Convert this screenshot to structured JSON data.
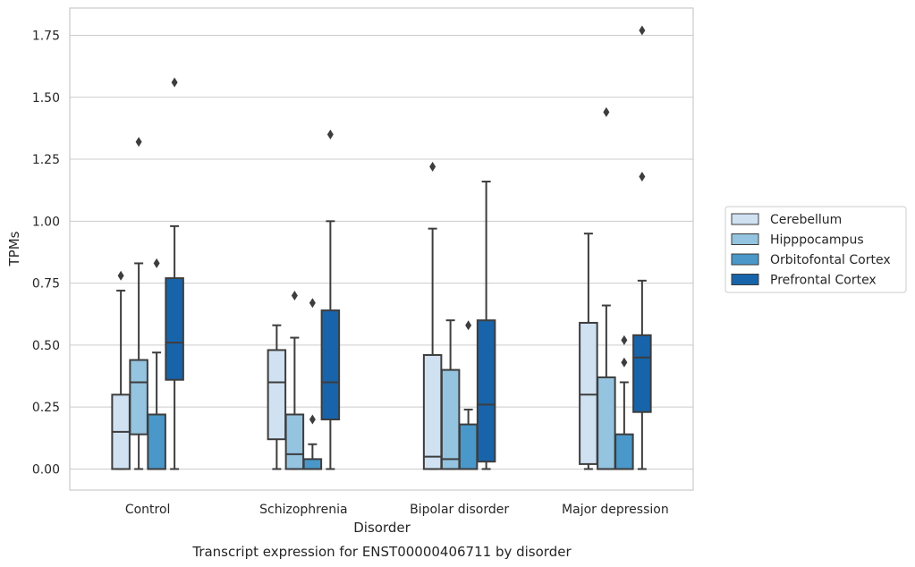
{
  "chart_data": {
    "type": "box",
    "title": "",
    "caption": "Transcript expression for ENST00000406711 by disorder",
    "xlabel": "Disorder",
    "ylabel": "TPMs",
    "ylim": [
      -0.085,
      1.86
    ],
    "yticks": [
      "0.00",
      "0.25",
      "0.50",
      "0.75",
      "1.00",
      "1.25",
      "1.50",
      "1.75"
    ],
    "grid": "horizontal",
    "legend_position": "right",
    "categories": [
      "Control",
      "Schizophrenia",
      "Bipolar disorder",
      "Major depression"
    ],
    "series": [
      {
        "name": "Cerebellum",
        "color": "#d0e1f2",
        "boxes": [
          {
            "whislo": 0.0,
            "q1": 0.0,
            "med": 0.15,
            "q3": 0.3,
            "whishi": 0.72,
            "fliers": [
              0.78
            ]
          },
          {
            "whislo": 0.0,
            "q1": 0.12,
            "med": 0.35,
            "q3": 0.48,
            "whishi": 0.58,
            "fliers": []
          },
          {
            "whislo": 0.0,
            "q1": 0.0,
            "med": 0.05,
            "q3": 0.46,
            "whishi": 0.97,
            "fliers": [
              1.22
            ]
          },
          {
            "whislo": 0.0,
            "q1": 0.02,
            "med": 0.3,
            "q3": 0.59,
            "whishi": 0.95,
            "fliers": []
          }
        ]
      },
      {
        "name": "Hipppocampus",
        "color": "#94c4df",
        "boxes": [
          {
            "whislo": 0.0,
            "q1": 0.14,
            "med": 0.35,
            "q3": 0.44,
            "whishi": 0.83,
            "fliers": [
              1.32
            ]
          },
          {
            "whislo": 0.0,
            "q1": 0.0,
            "med": 0.06,
            "q3": 0.22,
            "whishi": 0.53,
            "fliers": [
              0.7
            ]
          },
          {
            "whislo": 0.0,
            "q1": 0.0,
            "med": 0.04,
            "q3": 0.4,
            "whishi": 0.6,
            "fliers": []
          },
          {
            "whislo": 0.0,
            "q1": 0.0,
            "med": 0.0,
            "q3": 0.37,
            "whishi": 0.66,
            "fliers": [
              1.44
            ]
          }
        ]
      },
      {
        "name": "Orbitofontal Cortex",
        "color": "#4a98c9",
        "boxes": [
          {
            "whislo": 0.0,
            "q1": 0.0,
            "med": 0.0,
            "q3": 0.22,
            "whishi": 0.47,
            "fliers": [
              0.83
            ]
          },
          {
            "whislo": 0.0,
            "q1": 0.0,
            "med": 0.0,
            "q3": 0.04,
            "whishi": 0.1,
            "fliers": [
              0.2,
              0.67
            ]
          },
          {
            "whislo": 0.0,
            "q1": 0.0,
            "med": 0.0,
            "q3": 0.18,
            "whishi": 0.24,
            "fliers": [
              0.58
            ]
          },
          {
            "whislo": 0.0,
            "q1": 0.0,
            "med": 0.0,
            "q3": 0.14,
            "whishi": 0.35,
            "fliers": [
              0.43,
              0.52
            ]
          }
        ]
      },
      {
        "name": "Prefrontal Cortex",
        "color": "#1764ab",
        "boxes": [
          {
            "whislo": 0.0,
            "q1": 0.36,
            "med": 0.51,
            "q3": 0.77,
            "whishi": 0.98,
            "fliers": [
              1.56
            ]
          },
          {
            "whislo": 0.0,
            "q1": 0.2,
            "med": 0.35,
            "q3": 0.64,
            "whishi": 1.0,
            "fliers": [
              1.35
            ]
          },
          {
            "whislo": 0.0,
            "q1": 0.03,
            "med": 0.26,
            "q3": 0.6,
            "whishi": 1.16,
            "fliers": []
          },
          {
            "whislo": 0.0,
            "q1": 0.23,
            "med": 0.45,
            "q3": 0.54,
            "whishi": 0.76,
            "fliers": [
              1.18,
              1.77
            ]
          }
        ]
      }
    ]
  }
}
